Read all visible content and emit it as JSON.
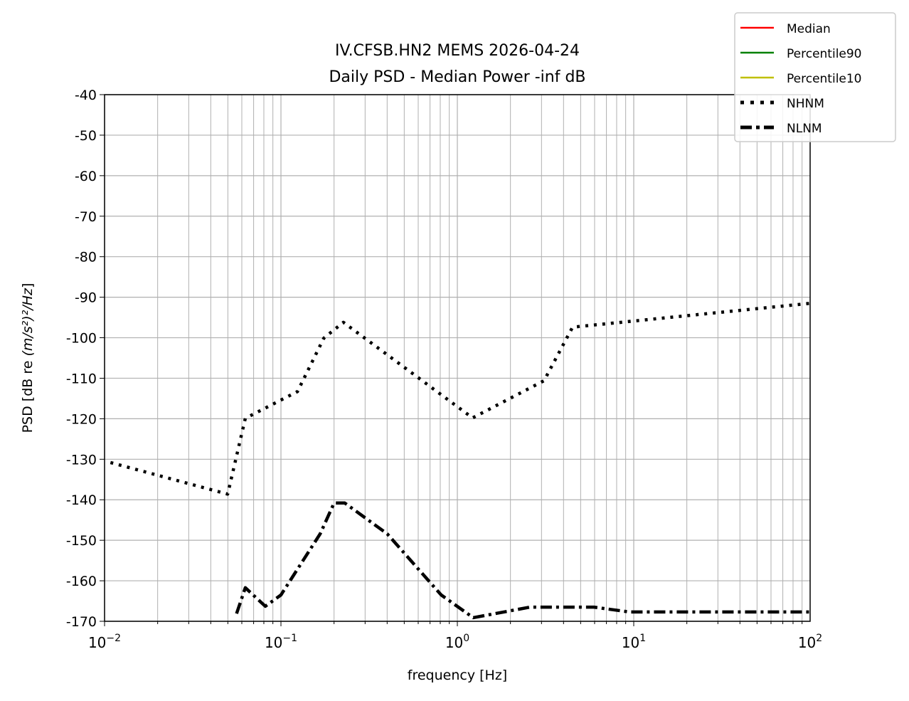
{
  "chart_data": {
    "type": "line",
    "title_line1": "IV.CFSB.HN2 MEMS 2026-04-24",
    "title_line2": "Daily PSD - Median Power -inf dB",
    "xlabel": "frequency [Hz]",
    "ylabel_prefix": "PSD [dB re ",
    "ylabel_math": "(m/s²)²/Hz",
    "ylabel_suffix": "]",
    "xscale": "log",
    "xlim": [
      0.01,
      100
    ],
    "ylim": [
      -170,
      -40
    ],
    "grid": true,
    "grid_minor": true,
    "legend_position": "outside top-right",
    "x_tick_labels": [
      {
        "base": "10",
        "exp": "−2",
        "value": 0.01
      },
      {
        "base": "10",
        "exp": "−1",
        "value": 0.1
      },
      {
        "base": "10",
        "exp": "0",
        "value": 1
      },
      {
        "base": "10",
        "exp": "1",
        "value": 10
      },
      {
        "base": "10",
        "exp": "2",
        "value": 100
      }
    ],
    "y_ticks": [
      -40,
      -50,
      -60,
      -70,
      -80,
      -90,
      -100,
      -110,
      -120,
      -130,
      -140,
      -150,
      -160,
      -170
    ],
    "series": [
      {
        "name": "Median",
        "color": "#ff0000",
        "style": "solid",
        "x": [],
        "y": []
      },
      {
        "name": "Percentile90",
        "color": "#008000",
        "style": "solid",
        "x": [],
        "y": []
      },
      {
        "name": "Percentile10",
        "color": "#bfbf00",
        "style": "solid",
        "x": [],
        "y": []
      },
      {
        "name": "NHNM",
        "color": "#000000",
        "style": "dotted",
        "x": [
          0.0108,
          0.0499,
          0.0628,
          0.124,
          0.175,
          0.226,
          1.22,
          3.1,
          4.5,
          100
        ],
        "y": [
          -130.8,
          -138.6,
          -119.9,
          -113.3,
          -100.1,
          -96.2,
          -119.8,
          -110.6,
          -97.4,
          -91.5
        ]
      },
      {
        "name": "NLNM",
        "color": "#000000",
        "style": "dashdot",
        "x": [
          0.056,
          0.0628,
          0.0815,
          0.1,
          0.167,
          0.2,
          0.23,
          0.4,
          0.81,
          1.23,
          2.58,
          5.94,
          9.46,
          100
        ],
        "y": [
          -168.1,
          -161.7,
          -166.3,
          -163.5,
          -148.4,
          -140.8,
          -140.8,
          -148.4,
          -163.5,
          -169.1,
          -166.5,
          -166.5,
          -167.7,
          -167.7
        ]
      }
    ]
  }
}
